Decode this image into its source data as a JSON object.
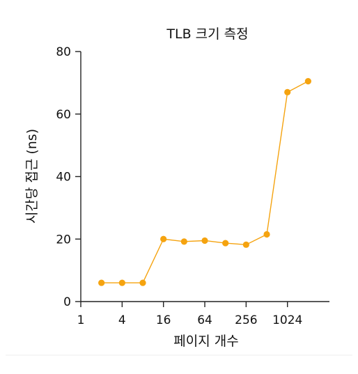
{
  "chart_data": {
    "type": "line",
    "title": "TLB 크기 측정",
    "xlabel": "페이지 개수",
    "ylabel": "시간당 접근 (ns)",
    "x_scale": "log2",
    "x_ticks": [
      1,
      4,
      16,
      64,
      256,
      1024
    ],
    "x_tick_labels": [
      "1",
      "4",
      "16",
      "64",
      "256",
      "1024"
    ],
    "xlim": [
      1,
      8192
    ],
    "y_ticks": [
      0,
      20,
      40,
      60,
      80
    ],
    "y_tick_labels": [
      "0",
      "20",
      "40",
      "60",
      "80"
    ],
    "ylim": [
      0,
      80
    ],
    "grid": false,
    "series": [
      {
        "color": "#f5a30f",
        "x": [
          2,
          4,
          8,
          16,
          32,
          64,
          128,
          256,
          512,
          1024,
          2048
        ],
        "y": [
          6,
          6,
          6,
          20,
          19.2,
          19.5,
          18.7,
          18.2,
          21.5,
          67,
          70.5
        ]
      }
    ]
  }
}
